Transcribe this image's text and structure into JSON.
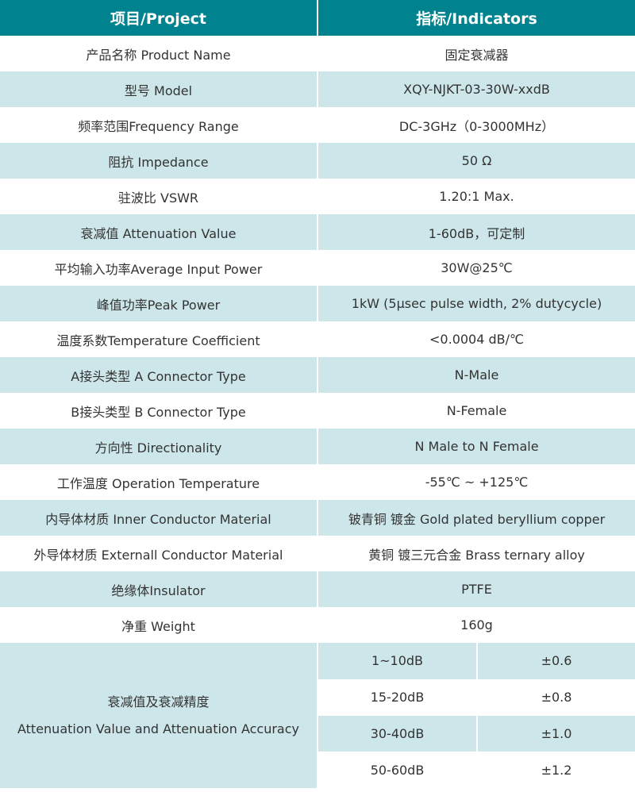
{
  "header": {
    "project": "项目/Project",
    "indicators": "指标/Indicators"
  },
  "rows": [
    {
      "label": "产品名称 Product Name",
      "value": "固定衰减器"
    },
    {
      "label": "型号 Model",
      "value": "XQY-NJKT-03-30W-xxdB"
    },
    {
      "label": "频率范围Frequency Range",
      "value": "DC-3GHz（0-3000MHz）"
    },
    {
      "label": "阻抗 Impedance",
      "value": "50 Ω"
    },
    {
      "label": "驻波比 VSWR",
      "value": "1.20:1 Max."
    },
    {
      "label": "衰减值 Attenuation Value",
      "value": "1-60dB，可定制"
    },
    {
      "label": "平均输入功率Average Input Power",
      "value": "30W@25℃"
    },
    {
      "label": "峰值功率Peak Power",
      "value": "1kW (5μsec pulse width, 2% dutycycle)"
    },
    {
      "label": "温度系数Temperature Coefficient",
      "value": "<0.0004 dB/℃"
    },
    {
      "label": "A接头类型 A Connector Type",
      "value": "N-Male"
    },
    {
      "label": "B接头类型 B Connector Type",
      "value": "N-Female"
    },
    {
      "label": "方向性 Directionality",
      "value": "N Male to N Female"
    },
    {
      "label": "工作温度 Operation Temperature",
      "value": "-55℃ ~ +125℃"
    },
    {
      "label": "内导体材质 Inner Conductor Material",
      "value": "铍青铜 镀金 Gold plated beryllium copper"
    },
    {
      "label": "外导体材质 Externall Conductor Material",
      "value": "黄铜 镀三元合金 Brass ternary alloy"
    },
    {
      "label": "绝缘体Insulator",
      "value": "PTFE"
    },
    {
      "label": "净重 Weight",
      "value": "160g"
    }
  ],
  "accuracy": {
    "label_cn": "衰减值及衰减精度",
    "label_en": "Attenuation Value and Attenuation Accuracy",
    "items": [
      {
        "range": "1~10dB",
        "accuracy": "±0.6"
      },
      {
        "range": "15-20dB",
        "accuracy": "±0.8"
      },
      {
        "range": "30-40dB",
        "accuracy": "±1.0"
      },
      {
        "range": "50-60dB",
        "accuracy": "±1.2"
      }
    ]
  },
  "colors": {
    "header": "#00838f",
    "stripe": "#cde6ea"
  }
}
